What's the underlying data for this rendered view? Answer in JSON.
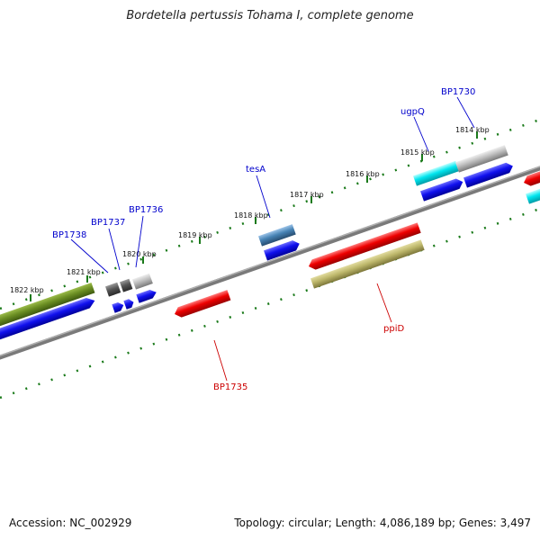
{
  "title": "Bordetella pertussis Tohama I, complete genome",
  "footer": {
    "accession": "Accession: NC_002929",
    "summary": "Topology: circular; Length: 4,086,189 bp; Genes: 3,497"
  },
  "ticks": [
    "1822 kbp",
    "1821 kbp",
    "1820 kbp",
    "1819 kbp",
    "1818 kbp",
    "1817 kbp",
    "1816 kbp",
    "1815 kbp",
    "1814 kbp"
  ],
  "gene_labels": {
    "BP1738": "BP1738",
    "BP1737": "BP1737",
    "BP1736": "BP1736",
    "tesA": "tesA",
    "ugpQ": "ugpQ",
    "BP1730": "BP1730",
    "BP1735": "BP1735",
    "ppiD": "ppiD"
  },
  "colors": {
    "forward_label": "#0000cc",
    "reverse_label": "#cc0000",
    "tick": "#1a7a1a",
    "backbone": "#777777"
  }
}
